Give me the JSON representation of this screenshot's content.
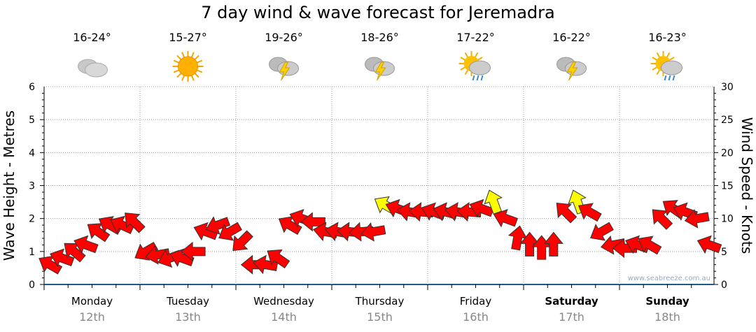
{
  "chart_data": {
    "type": "scatter",
    "title": "7 day wind & wave forecast for Jeremadra",
    "ylabel": "Wave Height - Metres",
    "y2label": "Wind Speed - Knots",
    "ylim": [
      0,
      6
    ],
    "y2lim": [
      0,
      30
    ],
    "yticks": [
      "0",
      "1",
      "2",
      "3",
      "4",
      "5",
      "6"
    ],
    "y2ticks": [
      "0",
      "5",
      "10",
      "15",
      "20",
      "25",
      "30"
    ],
    "grid": true,
    "days": [
      {
        "name": "Monday",
        "date": "12th",
        "temp": "16-24°",
        "icon": "cloudy",
        "bold": false
      },
      {
        "name": "Tuesday",
        "date": "13th",
        "temp": "15-27°",
        "icon": "sunny",
        "bold": false
      },
      {
        "name": "Wednesday",
        "date": "14th",
        "temp": "19-26°",
        "icon": "storm",
        "bold": false
      },
      {
        "name": "Thursday",
        "date": "15th",
        "temp": "18-26°",
        "icon": "storm",
        "bold": false
      },
      {
        "name": "Friday",
        "date": "16th",
        "temp": "17-22°",
        "icon": "sun-shower",
        "bold": false
      },
      {
        "name": "Saturday",
        "date": "17th",
        "temp": "16-22°",
        "icon": "storm",
        "bold": true
      },
      {
        "name": "Sunday",
        "date": "18th",
        "temp": "16-23°",
        "icon": "sun-shower",
        "bold": true
      }
    ],
    "wind_series": {
      "name": "Wind Speed (knots), 3-hourly",
      "values": [
        3,
        4,
        5,
        6,
        8,
        9,
        9,
        9.5,
        5,
        4.5,
        4,
        4,
        5,
        8,
        9,
        8,
        6.5,
        3,
        3,
        4,
        9,
        10,
        9.5,
        8,
        8,
        8,
        8,
        8,
        12,
        11.5,
        11,
        11,
        11,
        11,
        11,
        11,
        11.5,
        12.5,
        10,
        7,
        6,
        5.5,
        6,
        11,
        12.5,
        11,
        8,
        6,
        5.5,
        6,
        6,
        10,
        11.5,
        11,
        10,
        6
      ],
      "heading_deg": [
        210,
        200,
        220,
        200,
        215,
        210,
        205,
        225,
        150,
        170,
        160,
        200,
        180,
        200,
        160,
        150,
        135,
        180,
        190,
        215,
        210,
        200,
        180,
        190,
        190,
        185,
        175,
        170,
        210,
        200,
        190,
        185,
        200,
        195,
        190,
        185,
        200,
        250,
        200,
        280,
        270,
        270,
        270,
        225,
        250,
        210,
        150,
        170,
        180,
        200,
        210,
        225,
        215,
        200,
        170,
        200
      ],
      "gust_flag": [
        0,
        0,
        0,
        0,
        0,
        0,
        0,
        0,
        0,
        0,
        0,
        0,
        0,
        0,
        0,
        0,
        0,
        0,
        0,
        0,
        0,
        0,
        0,
        0,
        0,
        0,
        0,
        0,
        1,
        0,
        0,
        0,
        0,
        0,
        0,
        0,
        0,
        1,
        0,
        0,
        0,
        0,
        0,
        0,
        1,
        0,
        0,
        0,
        0,
        0,
        0,
        0,
        0,
        0,
        0,
        0
      ]
    },
    "colors": {
      "normal": "#ff0000",
      "gust": "#ffff00",
      "axis": "#1e5a8a",
      "grid": "#999999",
      "date": "#888888"
    },
    "watermark": "www.seabreeze.com.au"
  }
}
